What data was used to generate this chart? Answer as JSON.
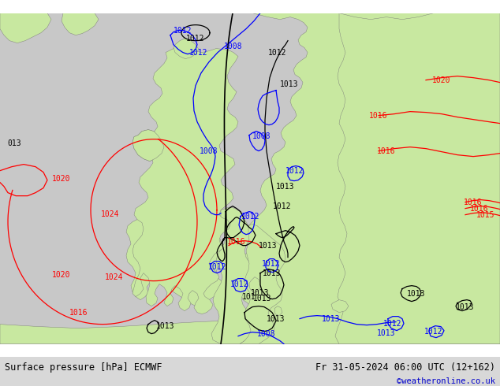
{
  "title_left": "Surface pressure [hPa] ECMWF",
  "title_right": "Fr 31-05-2024 06:00 UTC (12+162)",
  "credit": "©weatheronline.co.uk",
  "fig_width": 6.34,
  "fig_height": 4.9,
  "dpi": 100,
  "sea_color": "#c8c8c8",
  "land_color": "#c8e8a0",
  "bar_color": "#d8d8d8",
  "title_fontsize": 8.5,
  "credit_fontsize": 7.5,
  "credit_color": "#0000cc",
  "label_fontsize": 7
}
